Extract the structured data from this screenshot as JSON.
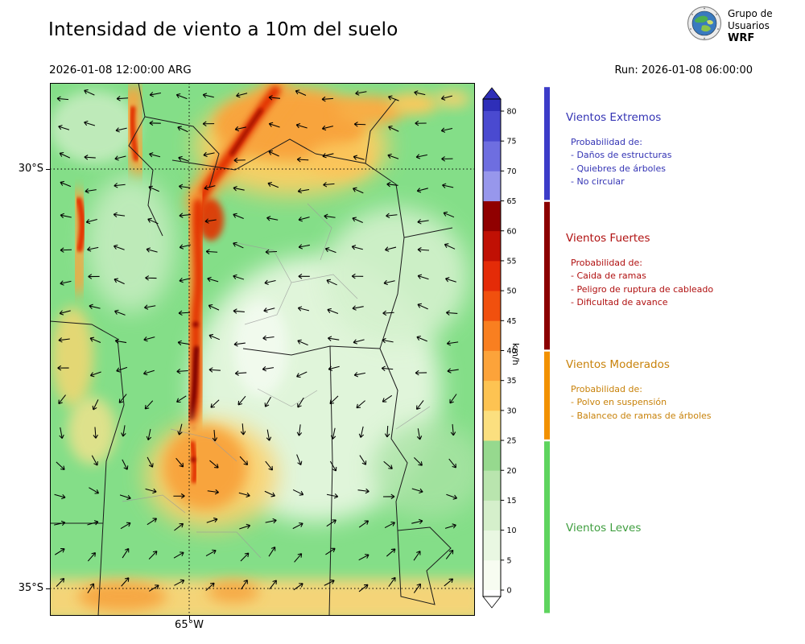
{
  "header": {
    "title": "Intensidad de viento a 10m del suelo",
    "valid_time": "2026-01-08 12:00:00 ARG",
    "run_label": "Run: 2026-01-08 06:00:00",
    "logo_lines": [
      "Grupo de",
      "Usuarios",
      "WRF"
    ]
  },
  "map": {
    "lat_ticks": [
      "30°S",
      "35°S"
    ],
    "lon_ticks": [
      "65°W"
    ]
  },
  "colorbar": {
    "unit": "km/h",
    "min": 0,
    "max": 80,
    "step": 5,
    "ticks": [
      "0",
      "5",
      "10",
      "15",
      "20",
      "25",
      "30",
      "35",
      "40",
      "45",
      "50",
      "55",
      "60",
      "65",
      "70",
      "75",
      "80"
    ],
    "band_colors": [
      "#f7fcf1",
      "#e9f7e2",
      "#d5efcb",
      "#b9e5ae",
      "#96d98e",
      "#fbdf7f",
      "#fdc352",
      "#fca33a",
      "#f97f20",
      "#f1500e",
      "#e42b08",
      "#c01004",
      "#900000",
      "#9797ec",
      "#6e6ee0",
      "#4a4ad0"
    ],
    "over_color": "#2e2eb8",
    "under_color": "#ffffff"
  },
  "legend": {
    "sections": [
      {
        "title": "Vientos Extremos",
        "color": "#3333b4",
        "items": [
          "Probabilidad de:",
          "- Daños de estructuras",
          "- Quiebres de árboles",
          "- No circular"
        ]
      },
      {
        "title": "Vientos Fuertes",
        "color": "#b01010",
        "items": [
          "Probabilidad de:",
          "- Caida de ramas",
          "- Peligro de ruptura de cableado",
          "- Dificultad de avance"
        ]
      },
      {
        "title": "Vientos Moderados",
        "color": "#c8820a",
        "items": [
          "Probabilidad de:",
          "- Polvo en suspensión",
          "- Balanceo de ramas de árboles"
        ]
      },
      {
        "title": "Vientos Leves",
        "color": "#3f9e3f",
        "items": []
      }
    ],
    "bar_segments": [
      {
        "name": "extremos",
        "color": "#3c3cc8",
        "from": 65,
        "to": 88
      },
      {
        "name": "fuertes",
        "color": "#8b0000",
        "from": 40,
        "to": 65
      },
      {
        "name": "moderados",
        "color": "#f29100",
        "from": 25,
        "to": 40
      },
      {
        "name": "leves",
        "color": "#5ed45e",
        "from": -4,
        "to": 25
      }
    ]
  }
}
